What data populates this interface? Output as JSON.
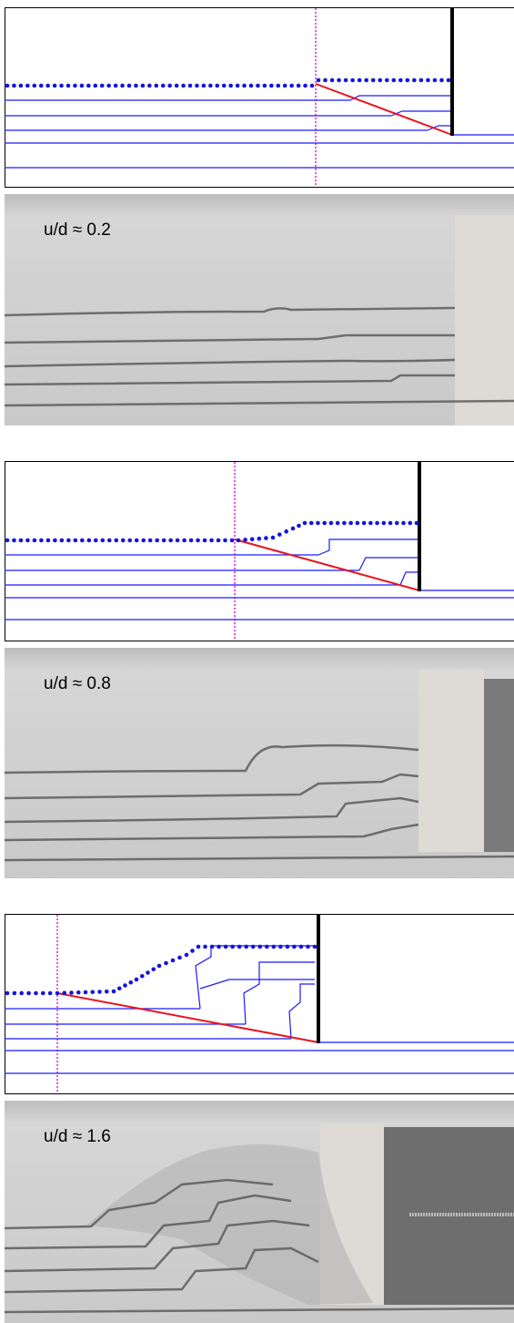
{
  "panels": [
    {
      "label": "u/d ≈ 0.2"
    },
    {
      "label": "u/d ≈ 0.8"
    },
    {
      "label": "u/d ≈ 1.6"
    }
  ]
}
